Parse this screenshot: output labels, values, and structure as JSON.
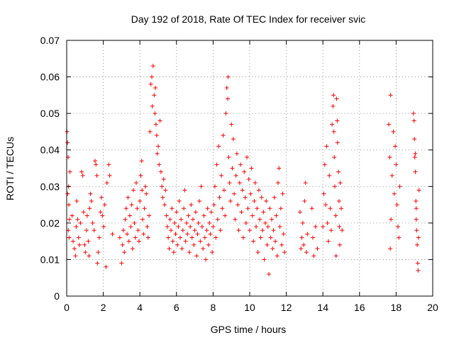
{
  "chart_data": {
    "type": "scatter",
    "title": "Day 192 of 2018, Rate Of TEC Index for receiver svic",
    "xlabel": "GPS time / hours",
    "ylabel": "ROTI / TECUs",
    "xlim": [
      0,
      20
    ],
    "ylim": [
      0,
      0.07
    ],
    "xticks": [
      "0",
      "2",
      "4",
      "6",
      "8",
      "10",
      "12",
      "14",
      "16",
      "18",
      "20"
    ],
    "yticks": [
      "0",
      "0.01",
      "0.02",
      "0.03",
      "0.04",
      "0.05",
      "0.06",
      "0.07"
    ],
    "grid": true,
    "marker": "+",
    "color": "#ff0000",
    "series": [
      {
        "name": "ROTI",
        "points": [
          [
            0.02,
            0.045
          ],
          [
            0.05,
            0.042
          ],
          [
            0.08,
            0.038
          ],
          [
            0.1,
            0.03
          ],
          [
            0.12,
            0.025
          ],
          [
            0.15,
            0.021
          ],
          [
            0.18,
            0.034
          ],
          [
            0.06,
            0.028
          ],
          [
            0.09,
            0.018
          ],
          [
            0.13,
            0.016
          ],
          [
            0.3,
            0.022
          ],
          [
            0.35,
            0.015
          ],
          [
            0.42,
            0.013
          ],
          [
            0.48,
            0.011
          ],
          [
            0.52,
            0.019
          ],
          [
            0.55,
            0.026
          ],
          [
            0.6,
            0.021
          ],
          [
            0.65,
            0.016
          ],
          [
            0.7,
            0.014
          ],
          [
            0.75,
            0.02
          ],
          [
            0.82,
            0.034
          ],
          [
            0.88,
            0.033
          ],
          [
            0.92,
            0.023
          ],
          [
            0.98,
            0.014
          ],
          [
            1.02,
            0.012
          ],
          [
            1.08,
            0.018
          ],
          [
            1.12,
            0.022
          ],
          [
            1.18,
            0.015
          ],
          [
            1.22,
            0.011
          ],
          [
            1.25,
            0.024
          ],
          [
            1.3,
            0.028
          ],
          [
            1.35,
            0.026
          ],
          [
            1.42,
            0.02
          ],
          [
            1.5,
            0.018
          ],
          [
            1.55,
            0.037
          ],
          [
            1.6,
            0.036
          ],
          [
            1.65,
            0.033
          ],
          [
            1.68,
            0.009
          ],
          [
            1.72,
            0.012
          ],
          [
            1.78,
            0.016
          ],
          [
            1.85,
            0.023
          ],
          [
            1.9,
            0.027
          ],
          [
            1.95,
            0.022
          ],
          [
            2.02,
            0.019
          ],
          [
            2.08,
            0.025
          ],
          [
            2.15,
            0.008
          ],
          [
            2.2,
            0.031
          ],
          [
            2.3,
            0.036
          ],
          [
            2.35,
            0.033
          ],
          [
            2.5,
            0.017
          ],
          [
            2.9,
            0.016
          ],
          [
            3.0,
            0.009
          ],
          [
            3.05,
            0.014
          ],
          [
            3.1,
            0.018
          ],
          [
            3.15,
            0.012
          ],
          [
            3.2,
            0.021
          ],
          [
            3.25,
            0.024
          ],
          [
            3.3,
            0.017
          ],
          [
            3.35,
            0.027
          ],
          [
            3.4,
            0.015
          ],
          [
            3.45,
            0.022
          ],
          [
            3.5,
            0.019
          ],
          [
            3.55,
            0.025
          ],
          [
            3.6,
            0.013
          ],
          [
            3.65,
            0.029
          ],
          [
            3.7,
            0.02
          ],
          [
            3.75,
            0.016
          ],
          [
            3.8,
            0.031
          ],
          [
            3.85,
            0.024
          ],
          [
            3.9,
            0.018
          ],
          [
            3.95,
            0.015
          ],
          [
            4.0,
            0.026
          ],
          [
            4.05,
            0.033
          ],
          [
            4.1,
            0.037
          ],
          [
            4.12,
            0.029
          ],
          [
            4.15,
            0.021
          ],
          [
            4.2,
            0.017
          ],
          [
            4.25,
            0.024
          ],
          [
            4.3,
            0.03
          ],
          [
            4.35,
            0.028
          ],
          [
            4.4,
            0.019
          ],
          [
            4.45,
            0.016
          ],
          [
            4.5,
            0.022
          ],
          [
            4.55,
            0.045
          ],
          [
            4.6,
            0.058
          ],
          [
            4.65,
            0.06
          ],
          [
            4.68,
            0.052
          ],
          [
            4.72,
            0.063
          ],
          [
            4.78,
            0.055
          ],
          [
            4.82,
            0.05
          ],
          [
            4.85,
            0.057
          ],
          [
            4.88,
            0.047
          ],
          [
            4.92,
            0.044
          ],
          [
            4.95,
            0.039
          ],
          [
            5.0,
            0.041
          ],
          [
            5.05,
            0.036
          ],
          [
            5.1,
            0.048
          ],
          [
            5.15,
            0.034
          ],
          [
            5.2,
            0.03
          ],
          [
            5.25,
            0.027
          ],
          [
            5.3,
            0.032
          ],
          [
            5.35,
            0.025
          ],
          [
            5.4,
            0.029
          ],
          [
            5.45,
            0.022
          ],
          [
            5.5,
            0.019
          ],
          [
            5.55,
            0.016
          ],
          [
            5.6,
            0.013
          ],
          [
            5.65,
            0.021
          ],
          [
            5.7,
            0.018
          ],
          [
            5.75,
            0.024
          ],
          [
            5.8,
            0.015
          ],
          [
            5.85,
            0.012
          ],
          [
            5.9,
            0.02
          ],
          [
            5.95,
            0.017
          ],
          [
            6.0,
            0.023
          ],
          [
            6.05,
            0.014
          ],
          [
            6.1,
            0.019
          ],
          [
            6.15,
            0.026
          ],
          [
            6.2,
            0.016
          ],
          [
            6.25,
            0.021
          ],
          [
            6.3,
            0.013
          ],
          [
            6.35,
            0.018
          ],
          [
            6.4,
            0.024
          ],
          [
            6.45,
            0.029
          ],
          [
            6.5,
            0.015
          ],
          [
            6.55,
            0.02
          ],
          [
            6.6,
            0.017
          ],
          [
            6.65,
            0.022
          ],
          [
            6.7,
            0.012
          ],
          [
            6.75,
            0.019
          ],
          [
            6.8,
            0.025
          ],
          [
            6.85,
            0.016
          ],
          [
            6.9,
            0.021
          ],
          [
            6.95,
            0.014
          ],
          [
            7.0,
            0.018
          ],
          [
            7.05,
            0.023
          ],
          [
            7.1,
            0.011
          ],
          [
            7.15,
            0.017
          ],
          [
            7.2,
            0.02
          ],
          [
            7.25,
            0.026
          ],
          [
            7.3,
            0.015
          ],
          [
            7.35,
            0.03
          ],
          [
            7.4,
            0.019
          ],
          [
            7.45,
            0.013
          ],
          [
            7.5,
            0.022
          ],
          [
            7.55,
            0.016
          ],
          [
            7.6,
            0.01
          ],
          [
            7.65,
            0.018
          ],
          [
            7.7,
            0.024
          ],
          [
            7.75,
            0.014
          ],
          [
            7.8,
            0.02
          ],
          [
            7.85,
            0.017
          ],
          [
            7.9,
            0.023
          ],
          [
            7.95,
            0.012
          ],
          [
            8.0,
            0.019
          ],
          [
            8.05,
            0.025
          ],
          [
            8.1,
            0.03
          ],
          [
            8.15,
            0.016
          ],
          [
            8.2,
            0.036
          ],
          [
            8.25,
            0.021
          ],
          [
            8.3,
            0.041
          ],
          [
            8.35,
            0.027
          ],
          [
            8.4,
            0.018
          ],
          [
            8.45,
            0.033
          ],
          [
            8.5,
            0.024
          ],
          [
            8.55,
            0.044
          ],
          [
            8.6,
            0.029
          ],
          [
            8.65,
            0.022
          ],
          [
            8.7,
            0.05
          ],
          [
            8.75,
            0.057
          ],
          [
            8.8,
            0.054
          ],
          [
            8.82,
            0.06
          ],
          [
            8.85,
            0.038
          ],
          [
            8.9,
            0.031
          ],
          [
            8.95,
            0.026
          ],
          [
            9.0,
            0.047
          ],
          [
            9.05,
            0.035
          ],
          [
            9.1,
            0.043
          ],
          [
            9.15,
            0.028
          ],
          [
            9.2,
            0.021
          ],
          [
            9.25,
            0.033
          ],
          [
            9.3,
            0.039
          ],
          [
            9.35,
            0.025
          ],
          [
            9.4,
            0.018
          ],
          [
            9.45,
            0.031
          ],
          [
            9.5,
            0.036
          ],
          [
            9.55,
            0.023
          ],
          [
            9.6,
            0.029
          ],
          [
            9.65,
            0.016
          ],
          [
            9.7,
            0.034
          ],
          [
            9.75,
            0.027
          ],
          [
            9.8,
            0.02
          ],
          [
            9.85,
            0.038
          ],
          [
            9.9,
            0.024
          ],
          [
            9.95,
            0.032
          ],
          [
            10.0,
            0.018
          ],
          [
            10.05,
            0.028
          ],
          [
            10.1,
            0.035
          ],
          [
            10.15,
            0.022
          ],
          [
            10.2,
            0.015
          ],
          [
            10.25,
            0.026
          ],
          [
            10.3,
            0.031
          ],
          [
            10.35,
            0.019
          ],
          [
            10.4,
            0.024
          ],
          [
            10.45,
            0.012
          ],
          [
            10.5,
            0.029
          ],
          [
            10.55,
            0.021
          ],
          [
            10.6,
            0.016
          ],
          [
            10.65,
            0.027
          ],
          [
            10.7,
            0.018
          ],
          [
            10.75,
            0.023
          ],
          [
            10.8,
            0.01
          ],
          [
            10.85,
            0.02
          ],
          [
            10.9,
            0.026
          ],
          [
            10.95,
            0.014
          ],
          [
            11.0,
            0.019
          ],
          [
            11.05,
            0.006
          ],
          [
            11.1,
            0.024
          ],
          [
            11.15,
            0.016
          ],
          [
            11.2,
            0.021
          ],
          [
            11.25,
            0.013
          ],
          [
            11.3,
            0.018
          ],
          [
            11.35,
            0.027
          ],
          [
            11.4,
            0.015
          ],
          [
            11.45,
            0.022
          ],
          [
            11.5,
            0.011
          ],
          [
            11.55,
            0.031
          ],
          [
            11.6,
            0.035
          ],
          [
            11.65,
            0.019
          ],
          [
            11.7,
            0.024
          ],
          [
            11.75,
            0.014
          ],
          [
            11.8,
            0.028
          ],
          [
            11.85,
            0.017
          ],
          [
            11.9,
            0.012
          ],
          [
            12.75,
            0.023
          ],
          [
            12.8,
            0.013
          ],
          [
            12.85,
            0.016
          ],
          [
            12.9,
            0.02
          ],
          [
            12.95,
            0.014
          ],
          [
            13.0,
            0.026
          ],
          [
            13.05,
            0.031
          ],
          [
            13.1,
            0.012
          ],
          [
            13.15,
            0.017
          ],
          [
            13.4,
            0.024
          ],
          [
            13.45,
            0.016
          ],
          [
            13.5,
            0.011
          ],
          [
            13.6,
            0.019
          ],
          [
            13.7,
            0.013
          ],
          [
            14.0,
            0.019
          ],
          [
            14.05,
            0.028
          ],
          [
            14.1,
            0.036
          ],
          [
            14.15,
            0.025
          ],
          [
            14.2,
            0.041
          ],
          [
            14.25,
            0.02
          ],
          [
            14.3,
            0.015
          ],
          [
            14.35,
            0.033
          ],
          [
            14.4,
            0.024
          ],
          [
            14.45,
            0.018
          ],
          [
            14.5,
            0.047
          ],
          [
            14.55,
            0.052
          ],
          [
            14.58,
            0.055
          ],
          [
            14.6,
            0.045
          ],
          [
            14.62,
            0.038
          ],
          [
            14.65,
            0.03
          ],
          [
            14.7,
            0.022
          ],
          [
            14.72,
            0.011
          ],
          [
            14.75,
            0.054
          ],
          [
            14.78,
            0.048
          ],
          [
            14.8,
            0.042
          ],
          [
            14.85,
            0.034
          ],
          [
            14.88,
            0.026
          ],
          [
            14.9,
            0.019
          ],
          [
            14.92,
            0.014
          ],
          [
            14.95,
            0.031
          ],
          [
            15.0,
            0.024
          ],
          [
            15.05,
            0.018
          ],
          [
            17.6,
            0.047
          ],
          [
            17.65,
            0.038
          ],
          [
            17.68,
            0.013
          ],
          [
            17.7,
            0.055
          ],
          [
            17.72,
            0.021
          ],
          [
            17.78,
            0.033
          ],
          [
            17.85,
            0.045
          ],
          [
            17.9,
            0.028
          ],
          [
            17.95,
            0.041
          ],
          [
            18.0,
            0.036
          ],
          [
            18.05,
            0.025
          ],
          [
            18.1,
            0.019
          ],
          [
            18.15,
            0.016
          ],
          [
            18.2,
            0.03
          ],
          [
            18.95,
            0.05
          ],
          [
            18.98,
            0.048
          ],
          [
            19.0,
            0.043
          ],
          [
            19.02,
            0.038
          ],
          [
            19.05,
            0.034
          ],
          [
            19.08,
            0.026
          ],
          [
            19.1,
            0.021
          ],
          [
            19.12,
            0.018
          ],
          [
            19.15,
            0.014
          ],
          [
            19.18,
            0.009
          ],
          [
            19.2,
            0.007
          ],
          [
            19.22,
            0.016
          ],
          [
            19.25,
            0.029
          ],
          [
            19.05,
            0.039
          ],
          [
            19.1,
            0.024
          ]
        ]
      }
    ]
  }
}
